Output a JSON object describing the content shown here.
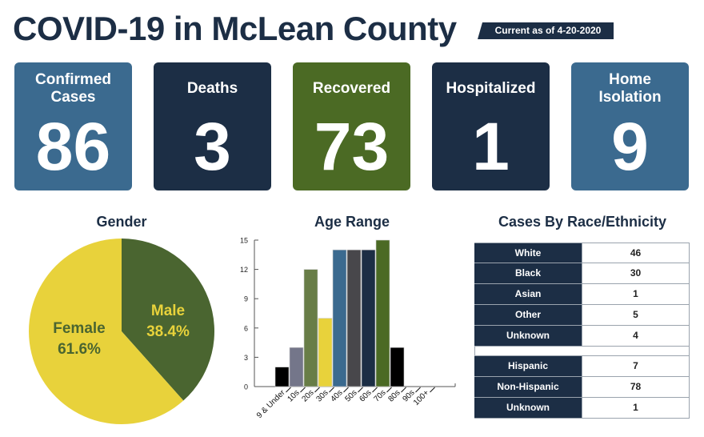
{
  "header": {
    "title": "COVID-19 in McLean County",
    "badge": "Current as of 4-20-2020"
  },
  "cards": [
    {
      "label_lines": [
        "Confirmed",
        "Cases"
      ],
      "value": "86",
      "color": "#3b6a8f"
    },
    {
      "label_lines": [
        "Deaths"
      ],
      "value": "3",
      "color": "#1c2e45"
    },
    {
      "label_lines": [
        "Recovered"
      ],
      "value": "73",
      "color": "#4b6a24"
    },
    {
      "label_lines": [
        "Hospitalized"
      ],
      "value": "1",
      "color": "#1c2e45"
    },
    {
      "label_lines": [
        "Home",
        "Isolation"
      ],
      "value": "9",
      "color": "#3b6a8f"
    }
  ],
  "chart_data": [
    {
      "type": "pie",
      "title": "Gender",
      "slices": [
        {
          "label": "Male",
          "value": 38.4,
          "display": "38.4%",
          "color": "#4a6530",
          "text_color": "#e8d23b"
        },
        {
          "label": "Female",
          "value": 61.6,
          "display": "61.6%",
          "color": "#e8d23b",
          "text_color": "#4a6530"
        }
      ]
    },
    {
      "type": "bar",
      "title": "Age Range",
      "categories": [
        "9 & Under",
        "10s",
        "20s",
        "30s",
        "40s",
        "50s",
        "60s",
        "70s",
        "80s",
        "90s",
        "100+"
      ],
      "values": [
        2,
        4,
        12,
        7,
        14,
        14,
        14,
        15,
        4,
        0,
        0
      ],
      "colors": [
        "#000000",
        "#74768a",
        "#687d47",
        "#e8d23b",
        "#3b6a8f",
        "#48474b",
        "#1c2e45",
        "#4b6a24",
        "#000000",
        "#000000",
        "#000000"
      ],
      "yticks": [
        0,
        3,
        6,
        9,
        12,
        15
      ],
      "ylim": [
        0,
        15
      ],
      "xlabel": "",
      "ylabel": ""
    },
    {
      "type": "table",
      "title": "Cases By Race/Ethnicity",
      "groups": [
        [
          {
            "label": "White",
            "value": "46"
          },
          {
            "label": "Black",
            "value": "30"
          },
          {
            "label": "Asian",
            "value": "1"
          },
          {
            "label": "Other",
            "value": "5"
          },
          {
            "label": "Unknown",
            "value": "4"
          }
        ],
        [
          {
            "label": "Hispanic",
            "value": "7"
          },
          {
            "label": "Non-Hispanic",
            "value": "78"
          },
          {
            "label": "Unknown",
            "value": "1"
          }
        ]
      ]
    }
  ]
}
